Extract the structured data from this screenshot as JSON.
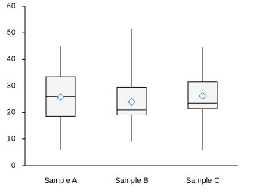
{
  "chart_data": {
    "type": "box",
    "categories": [
      "Sample A",
      "Sample B",
      "Sample C"
    ],
    "min": [
      6,
      9,
      6
    ],
    "q1": [
      18.5,
      19,
      21.5
    ],
    "median": [
      26,
      21,
      23.5
    ],
    "q3": [
      33.5,
      29.5,
      31.5
    ],
    "max": [
      45,
      51.5,
      44.5
    ],
    "mean": [
      25.8,
      24,
      26.2
    ],
    "box_color": "#f5f5f5",
    "line_color": "#000000",
    "mean_color": "#3b8fd0",
    "ylim": [
      0,
      60
    ],
    "yticks": [
      0,
      10,
      20,
      30,
      40,
      50,
      60
    ],
    "grid": false
  }
}
